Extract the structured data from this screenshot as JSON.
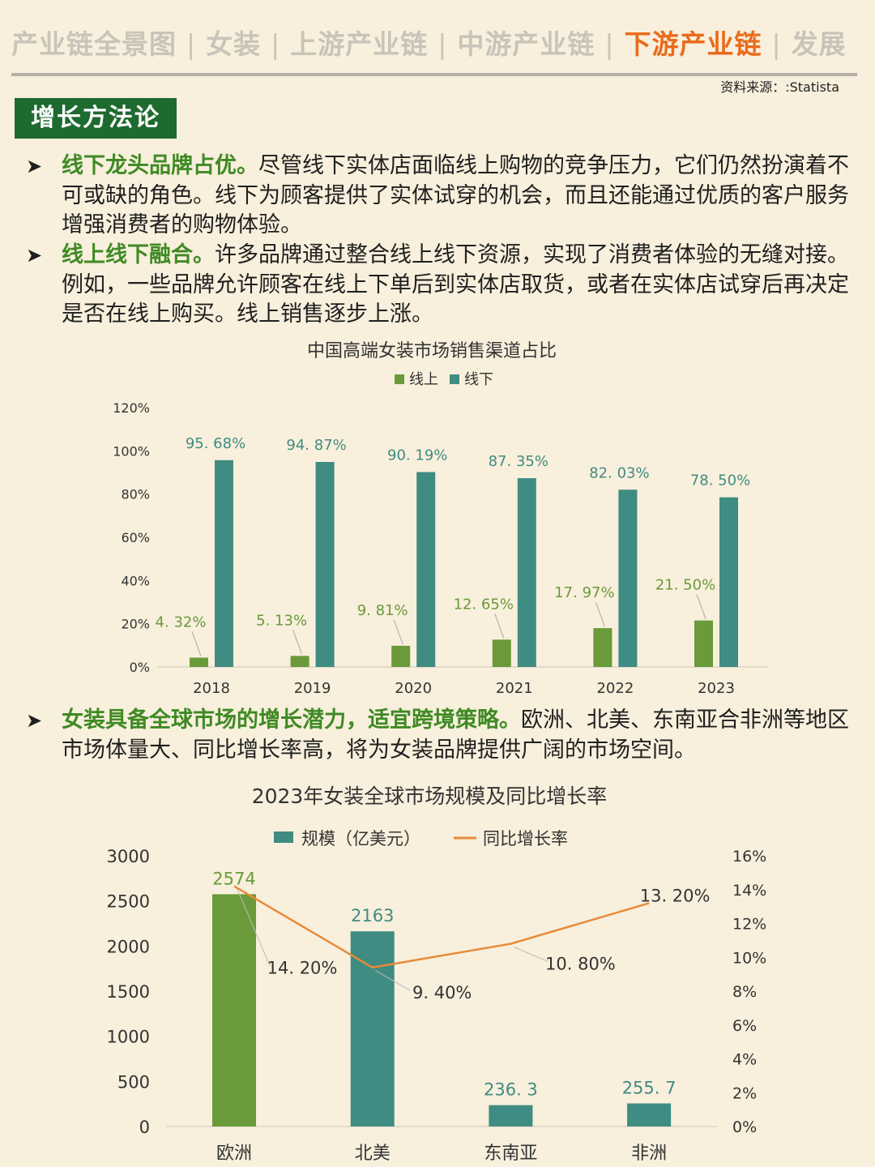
{
  "nav": {
    "items": [
      {
        "label": "产业链全景图",
        "active": false
      },
      {
        "label": "女装",
        "active": false
      },
      {
        "label": "上游产业链",
        "active": false
      },
      {
        "label": "中游产业链",
        "active": false
      },
      {
        "label": "下游产业链",
        "active": true
      },
      {
        "label": "发展",
        "active": false
      }
    ],
    "separator": "|"
  },
  "source": "资料来源：:Statista",
  "section_title": "增长方法论",
  "bullets": [
    {
      "lead": "线下龙头品牌占优。",
      "text": "尽管线下实体店面临线上购物的竞争压力，它们仍然扮演着不可或缺的角色。线下为顾客提供了实体试穿的机会，而且还能通过优质的客户服务增强消费者的购物体验。"
    },
    {
      "lead": "线上线下融合。",
      "text": "许多品牌通过整合线上线下资源，实现了消费者体验的无缝对接。例如，一些品牌允许顾客在线上下单后到实体店取货，或者在实体店试穿后再决定是否在线上购买。线上销售逐步上涨。"
    },
    {
      "lead": "女装具备全球市场的增长潜力，适宜跨境策略。",
      "text": "欧洲、北美、东南亚合非洲等地区市场体量大、同比增长率高，将为女装品牌提供广阔的市场空间。"
    }
  ],
  "colors": {
    "green": "#6a9a3a",
    "teal": "#3f8c82",
    "orange": "#e88a3a",
    "lead": "#3f8a24",
    "title_bg": "#1e6a2f",
    "active_nav": "#ea6b1c"
  },
  "chart_data": [
    {
      "type": "bar",
      "title": "中国高端女装市场销售渠道占比",
      "categories": [
        "2018",
        "2019",
        "2020",
        "2021",
        "2022",
        "2023"
      ],
      "series": [
        {
          "name": "线上",
          "values": [
            4.32,
            5.13,
            9.81,
            12.65,
            17.97,
            21.5
          ],
          "labels": [
            "4. 32%",
            "5. 13%",
            "9. 81%",
            "12. 65%",
            "17. 97%",
            "21. 50%"
          ]
        },
        {
          "name": "线下",
          "values": [
            95.68,
            94.87,
            90.19,
            87.35,
            82.03,
            78.5
          ],
          "labels": [
            "95. 68%",
            "94. 87%",
            "90. 19%",
            "87. 35%",
            "82. 03%",
            "78. 50%"
          ]
        }
      ],
      "ylim": [
        0,
        120
      ],
      "yticks": [
        "0%",
        "20%",
        "40%",
        "60%",
        "80%",
        "100%",
        "120%"
      ],
      "legend": "top-center",
      "grid": false
    },
    {
      "type": "bar+line",
      "title": "2023年女装全球市场规模及同比增长率",
      "categories": [
        "欧洲",
        "北美",
        "东南亚",
        "非洲"
      ],
      "series": [
        {
          "name": "规模（亿美元）",
          "type": "bar",
          "values": [
            2574,
            2163,
            236.3,
            255.7
          ],
          "labels": [
            "2574",
            "2163",
            "236. 3",
            "255. 7"
          ]
        },
        {
          "name": "同比增长率",
          "type": "line",
          "axis": "right",
          "values": [
            14.2,
            9.4,
            10.8,
            13.2
          ],
          "labels": [
            "14. 20%",
            "9. 40%",
            "10. 80%",
            "13. 20%"
          ]
        }
      ],
      "ylim": [
        0,
        3000
      ],
      "yticks": [
        "0",
        "500",
        "1000",
        "1500",
        "2000",
        "2500",
        "3000"
      ],
      "y2lim": [
        0,
        16
      ],
      "y2ticks": [
        "0%",
        "2%",
        "4%",
        "6%",
        "8%",
        "10%",
        "12%",
        "14%",
        "16%"
      ],
      "legend": "top-center",
      "grid": false
    }
  ]
}
